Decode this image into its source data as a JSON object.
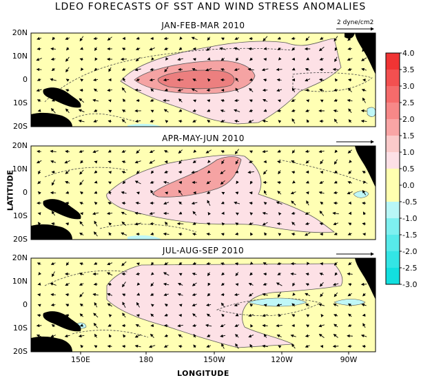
{
  "title": "LDEO FORECASTS OF SST AND WIND STRESS ANOMALIES",
  "panels": [
    {
      "title": "JAN-FEB-MAR 2010"
    },
    {
      "title": "APR-MAY-JUN 2010"
    },
    {
      "title": "JUL-AUG-SEP 2010"
    }
  ],
  "lat_labels": [
    "20N",
    "10N",
    "0",
    "10S",
    "20S"
  ],
  "lon_labels": [
    "150E",
    "180",
    "150W",
    "120W",
    "90W"
  ],
  "xlabel": "LONGITUDE",
  "ylabel": "LATITUDE",
  "vector_scale_label": "2 dyne/cm2",
  "colorbar": {
    "labels": [
      "4.0",
      "3.5",
      "3.0",
      "2.5",
      "2.0",
      "1.5",
      "1.0",
      "0.5",
      "0.0",
      "-0.5",
      "-1.0",
      "-1.5",
      "-2.0",
      "-2.5",
      "-3.0"
    ],
    "colors": [
      "#f03434",
      "#f35050",
      "#f56b6b",
      "#f78888",
      "#f9a5a5",
      "#fbcaca",
      "#fde0e6",
      "#ffffb0",
      "#ffffb0",
      "#b8f7f7",
      "#7ef0f0",
      "#57eaea",
      "#33e5e5",
      "#12dfdf"
    ]
  },
  "colors": {
    "background": "#ffffb4",
    "warm1": "#fde1e6",
    "warm2": "#f5a3a3",
    "warm3": "#ec7f7f",
    "cool1": "#bff7f7",
    "land": "#000000"
  }
}
